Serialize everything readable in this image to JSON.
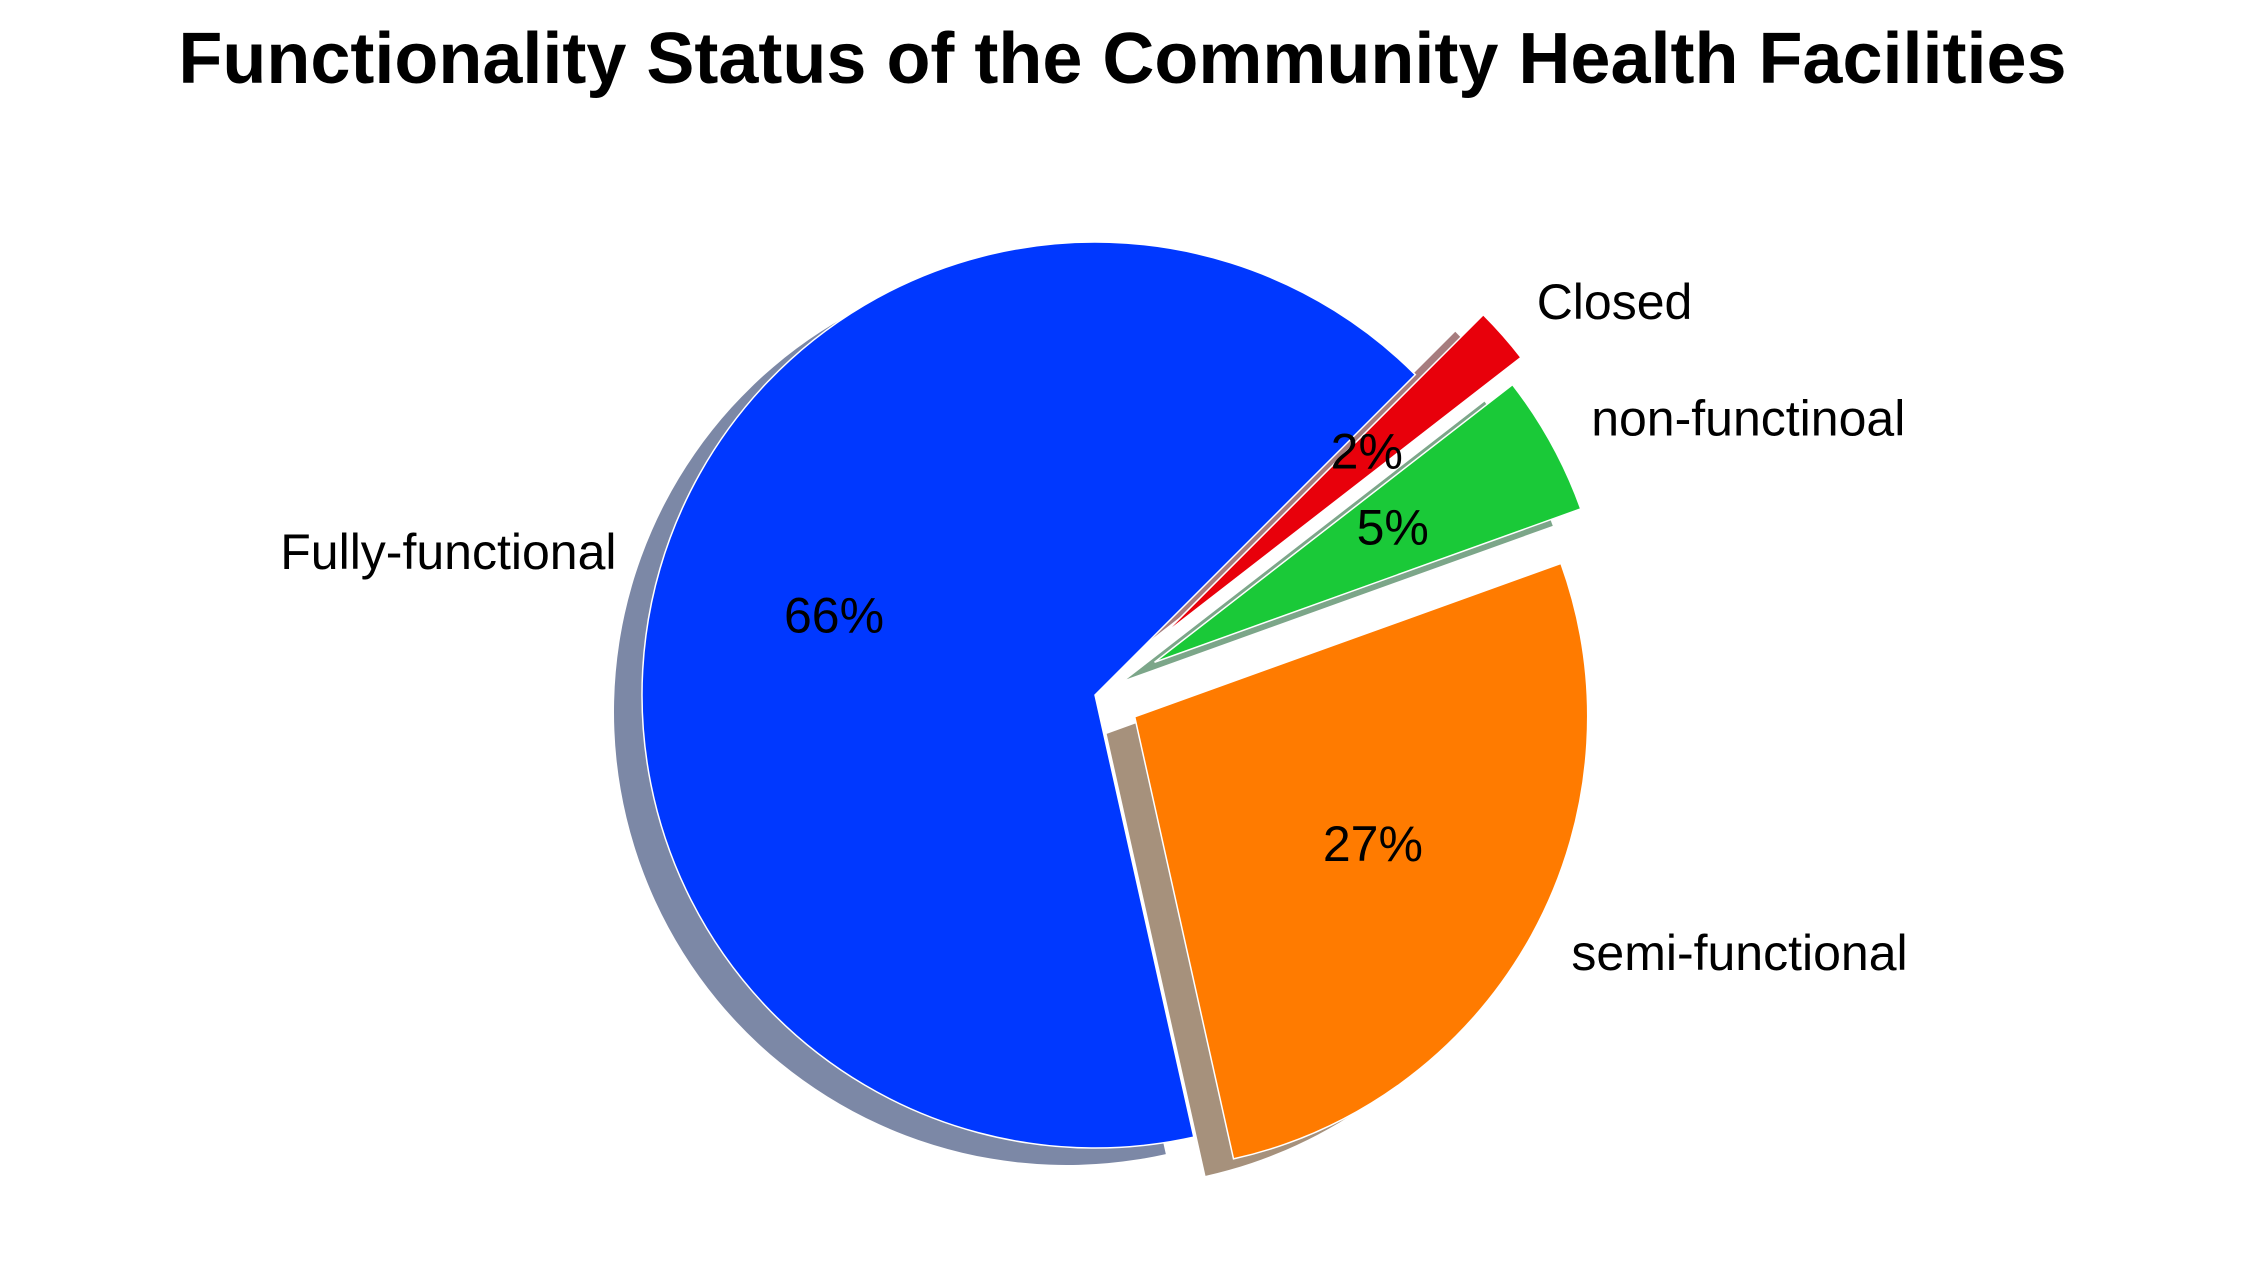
{
  "chart_data": {
    "type": "pie",
    "title": "Functionality Status of the Community Health Facilities",
    "slices": [
      {
        "label": "Fully-functional",
        "value": 66,
        "pct_label": "66%",
        "color": "#0038ff",
        "shadow": "#7c88a6"
      },
      {
        "label": "semi-functional",
        "value": 27,
        "pct_label": "27%",
        "color": "#ff7b00",
        "shadow": "#a6917c"
      },
      {
        "label": "non-functinoal",
        "value": 5,
        "pct_label": "5%",
        "color": "#1ac938",
        "shadow": "#7ca689"
      },
      {
        "label": "Closed",
        "value": 2,
        "pct_label": "2%",
        "color": "#e8000b",
        "shadow": "#a67c7e"
      }
    ],
    "explode": [
      0,
      0.1,
      0.15,
      0.2
    ],
    "start_angle_deg": 45,
    "shadow": true,
    "legend": "none"
  }
}
